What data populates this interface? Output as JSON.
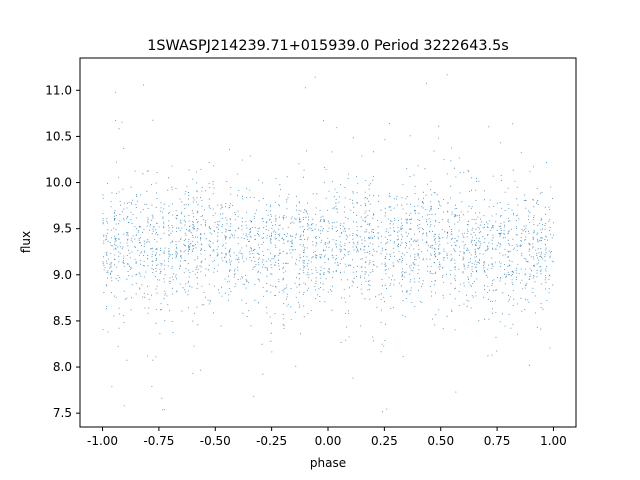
{
  "chart_data": {
    "type": "scatter",
    "title": "1SWASPJ214239.71+015939.0 Period 3222643.5s",
    "xlabel": "phase",
    "ylabel": "flux",
    "xlim": [
      -1.1,
      1.1
    ],
    "ylim": [
      7.35,
      11.35
    ],
    "x_ticks": [
      "-1.00",
      "-0.75",
      "-0.50",
      "-0.25",
      "0.00",
      "0.25",
      "0.50",
      "0.75",
      "1.00"
    ],
    "y_ticks": [
      "7.5",
      "8.0",
      "8.5",
      "9.0",
      "9.5",
      "10.0",
      "10.5",
      "11.0"
    ],
    "grid": false,
    "legend": "none",
    "series": [
      {
        "color": "#1f77b4",
        "marker": "point",
        "profile_phase": [
          -1.0,
          -0.875,
          -0.75,
          -0.625,
          -0.5,
          -0.375,
          -0.25,
          -0.125,
          0.0,
          0.125,
          0.25,
          0.375,
          0.5,
          0.625,
          0.75,
          0.875,
          1.0
        ],
        "profile_flux_center": [
          9.3,
          9.35,
          9.3,
          9.35,
          9.4,
          9.3,
          9.25,
          9.3,
          9.3,
          9.35,
          9.3,
          9.35,
          9.4,
          9.3,
          9.25,
          9.3,
          9.3
        ],
        "flux_range": [
          7.5,
          11.25
        ],
        "n_points": 9000
      }
    ]
  }
}
